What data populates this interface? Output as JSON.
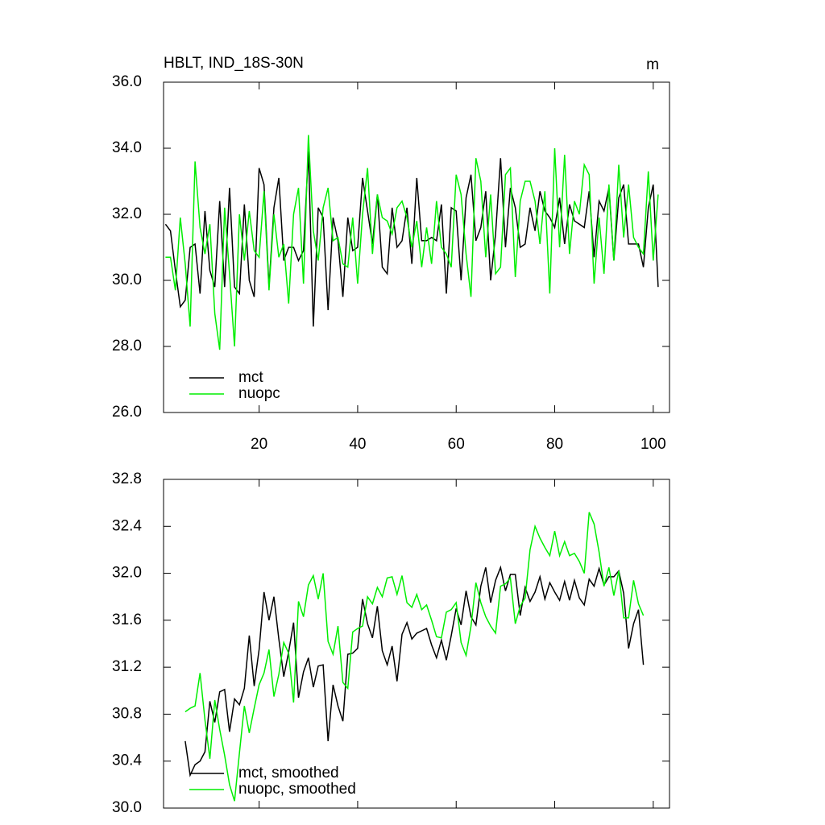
{
  "chart_data": [
    {
      "type": "line",
      "title": "HBLT, IND_18S-30N",
      "units": "m",
      "x": [
        1,
        2,
        3,
        4,
        5,
        6,
        7,
        8,
        9,
        10,
        11,
        12,
        13,
        14,
        15,
        16,
        17,
        18,
        19,
        20,
        21,
        22,
        23,
        24,
        25,
        26,
        27,
        28,
        29,
        30,
        31,
        32,
        33,
        34,
        35,
        36,
        37,
        38,
        39,
        40,
        41,
        42,
        43,
        44,
        45,
        46,
        47,
        48,
        49,
        50,
        51,
        52,
        53,
        54,
        55,
        56,
        57,
        58,
        59,
        60,
        61,
        62,
        63,
        64,
        65,
        66,
        67,
        68,
        69,
        70,
        71,
        72,
        73,
        74,
        75,
        76,
        77,
        78,
        79,
        80,
        81,
        82,
        83,
        84,
        85,
        86,
        87,
        88,
        89,
        90,
        91,
        92,
        93,
        94,
        95,
        96,
        97,
        98,
        99,
        100,
        101
      ],
      "series": [
        {
          "name": "mct",
          "color": "#000000",
          "values": [
            31.7,
            31.5,
            30.3,
            29.2,
            29.4,
            31.0,
            31.1,
            29.6,
            32.1,
            30.3,
            29.8,
            32.4,
            29.8,
            32.8,
            29.8,
            29.6,
            32.3,
            30.0,
            29.5,
            33.4,
            32.9,
            29.8,
            32.2,
            33.1,
            30.6,
            31.0,
            31.0,
            30.6,
            30.9,
            33.9,
            28.6,
            32.2,
            31.9,
            29.1,
            31.9,
            31.2,
            29.5,
            31.9,
            30.9,
            31.0,
            33.1,
            32.1,
            31.1,
            32.6,
            30.4,
            30.2,
            32.2,
            31.0,
            31.2,
            32.2,
            30.5,
            33.1,
            31.2,
            31.2,
            31.3,
            31.2,
            32.3,
            29.6,
            32.2,
            32.1,
            30.0,
            32.5,
            33.2,
            31.2,
            31.6,
            32.7,
            30.0,
            31.4,
            33.7,
            31.0,
            32.8,
            32.2,
            31.0,
            31.1,
            32.2,
            31.5,
            32.7,
            32.1,
            31.9,
            31.6,
            32.5,
            31.1,
            32.3,
            31.8,
            31.7,
            31.6,
            32.7,
            30.7,
            32.4,
            32.1,
            32.8,
            30.6,
            32.5,
            32.9,
            31.1,
            31.1,
            31.1,
            30.4,
            32.2,
            32.9,
            29.8
          ]
        },
        {
          "name": "nuopc",
          "color": "#00ee00",
          "values": [
            30.7,
            30.7,
            29.7,
            31.9,
            30.5,
            28.6,
            33.6,
            31.6,
            30.8,
            31.7,
            29.0,
            27.9,
            32.2,
            30.2,
            28.0,
            32.0,
            30.6,
            32.1,
            30.9,
            30.7,
            32.7,
            29.7,
            32.0,
            30.7,
            31.1,
            29.3,
            32.0,
            32.8,
            29.9,
            34.4,
            31.5,
            30.6,
            32.2,
            32.8,
            31.2,
            31.3,
            30.5,
            30.4,
            31.9,
            29.9,
            32.0,
            33.4,
            30.8,
            32.6,
            31.9,
            31.8,
            31.4,
            32.2,
            32.4,
            31.9,
            31.0,
            31.8,
            30.4,
            31.6,
            30.5,
            32.4,
            31.0,
            30.8,
            30.4,
            33.2,
            32.6,
            30.8,
            29.5,
            33.7,
            33.0,
            30.7,
            32.6,
            30.2,
            30.4,
            33.2,
            33.4,
            30.1,
            32.4,
            33.0,
            33.0,
            32.4,
            31.1,
            32.7,
            29.6,
            34.0,
            31.0,
            33.8,
            30.8,
            32.4,
            32.0,
            33.5,
            33.2,
            29.9,
            31.9,
            30.2,
            32.9,
            30.6,
            33.5,
            31.3,
            32.9,
            31.3,
            31.0,
            30.8,
            33.3,
            30.6,
            32.6
          ]
        }
      ],
      "xlim": [
        0.6,
        103.3
      ],
      "ylim": [
        26,
        36
      ],
      "xticks": [
        20,
        40,
        60,
        80,
        100
      ],
      "show_xtick_labels": true,
      "yticks": [
        {
          "value": 26,
          "label": "26.0"
        },
        {
          "value": 28,
          "label": "28.0"
        },
        {
          "value": 30,
          "label": "30.0"
        },
        {
          "value": 32,
          "label": "32.0"
        },
        {
          "value": 34,
          "label": "34.0"
        },
        {
          "value": 36,
          "label": "36.0"
        }
      ],
      "legend": "lower left"
    },
    {
      "type": "line",
      "x": [
        5,
        6,
        7,
        8,
        9,
        10,
        11,
        12,
        13,
        14,
        15,
        16,
        17,
        18,
        19,
        20,
        21,
        22,
        23,
        24,
        25,
        26,
        27,
        28,
        29,
        30,
        31,
        32,
        33,
        34,
        35,
        36,
        37,
        38,
        39,
        40,
        41,
        42,
        43,
        44,
        45,
        46,
        47,
        48,
        49,
        50,
        51,
        52,
        53,
        54,
        55,
        56,
        57,
        58,
        59,
        60,
        61,
        62,
        63,
        64,
        65,
        66,
        67,
        68,
        69,
        70,
        71,
        72,
        73,
        74,
        75,
        76,
        77,
        78,
        79,
        80,
        81,
        82,
        83,
        84,
        85,
        86,
        87,
        88,
        89,
        90,
        91,
        92,
        93,
        94,
        95,
        96,
        97,
        98
      ],
      "series": [
        {
          "name": "mct, smoothed",
          "color": "#000000",
          "values": [
            30.57,
            30.28,
            30.37,
            30.4,
            30.48,
            30.91,
            30.73,
            30.99,
            31.01,
            30.65,
            30.93,
            30.88,
            31.02,
            31.47,
            31.04,
            31.35,
            31.84,
            31.6,
            31.8,
            31.44,
            31.12,
            31.33,
            31.58,
            30.94,
            31.16,
            31.28,
            31.03,
            31.21,
            31.22,
            30.57,
            31.05,
            30.87,
            30.74,
            31.31,
            31.32,
            31.36,
            31.78,
            31.57,
            31.45,
            31.72,
            31.34,
            31.22,
            31.38,
            31.08,
            31.48,
            31.58,
            31.44,
            31.49,
            31.51,
            31.53,
            31.39,
            31.28,
            31.43,
            31.26,
            31.47,
            31.7,
            31.56,
            31.85,
            31.63,
            31.56,
            31.89,
            32.05,
            31.75,
            31.94,
            32.05,
            31.85,
            31.99,
            31.99,
            31.64,
            31.88,
            31.76,
            31.84,
            31.97,
            31.78,
            31.92,
            31.84,
            31.77,
            31.93,
            31.77,
            31.94,
            31.79,
            31.73,
            31.95,
            31.89,
            32.04,
            31.9,
            31.97,
            31.97,
            32.02,
            31.83,
            31.36,
            31.57,
            31.69,
            31.22
          ]
        },
        {
          "name": "nuopc, smoothed",
          "color": "#00ee00",
          "values": [
            30.82,
            30.85,
            30.87,
            31.15,
            30.75,
            30.42,
            30.92,
            30.67,
            30.45,
            30.2,
            30.06,
            30.47,
            30.87,
            30.64,
            30.85,
            31.05,
            31.15,
            31.35,
            30.95,
            31.14,
            31.41,
            31.32,
            30.9,
            31.76,
            31.63,
            31.9,
            31.98,
            31.78,
            32.0,
            31.42,
            31.31,
            31.55,
            31.07,
            31.02,
            31.5,
            31.53,
            31.55,
            31.8,
            31.74,
            31.88,
            31.8,
            31.96,
            31.97,
            31.82,
            31.98,
            31.75,
            31.71,
            31.82,
            31.69,
            31.73,
            31.6,
            31.46,
            31.45,
            31.67,
            31.69,
            31.75,
            31.41,
            31.3,
            31.55,
            31.92,
            31.75,
            31.63,
            31.55,
            31.49,
            31.89,
            31.91,
            31.96,
            31.57,
            31.72,
            31.79,
            32.2,
            32.4,
            32.3,
            32.22,
            32.15,
            32.36,
            32.15,
            32.27,
            32.15,
            32.17,
            32.1,
            32.0,
            32.52,
            32.42,
            32.18,
            31.89,
            32.05,
            31.81,
            32.02,
            31.62,
            31.62,
            31.94,
            31.74,
            31.64
          ]
        }
      ],
      "xlim": [
        0.6,
        103.3
      ],
      "ylim": [
        30,
        32.8
      ],
      "xticks": [
        20,
        40,
        60,
        80,
        100
      ],
      "show_xtick_labels": false,
      "yticks": [
        {
          "value": 30,
          "label": "30.0"
        },
        {
          "value": 30.4,
          "label": "30.4"
        },
        {
          "value": 30.8,
          "label": "30.8"
        },
        {
          "value": 31.2,
          "label": "31.2"
        },
        {
          "value": 31.6,
          "label": "31.6"
        },
        {
          "value": 32,
          "label": "32.0"
        },
        {
          "value": 32.4,
          "label": "32.4"
        },
        {
          "value": 32.8,
          "label": "32.8"
        }
      ],
      "legend": "lower left"
    }
  ]
}
